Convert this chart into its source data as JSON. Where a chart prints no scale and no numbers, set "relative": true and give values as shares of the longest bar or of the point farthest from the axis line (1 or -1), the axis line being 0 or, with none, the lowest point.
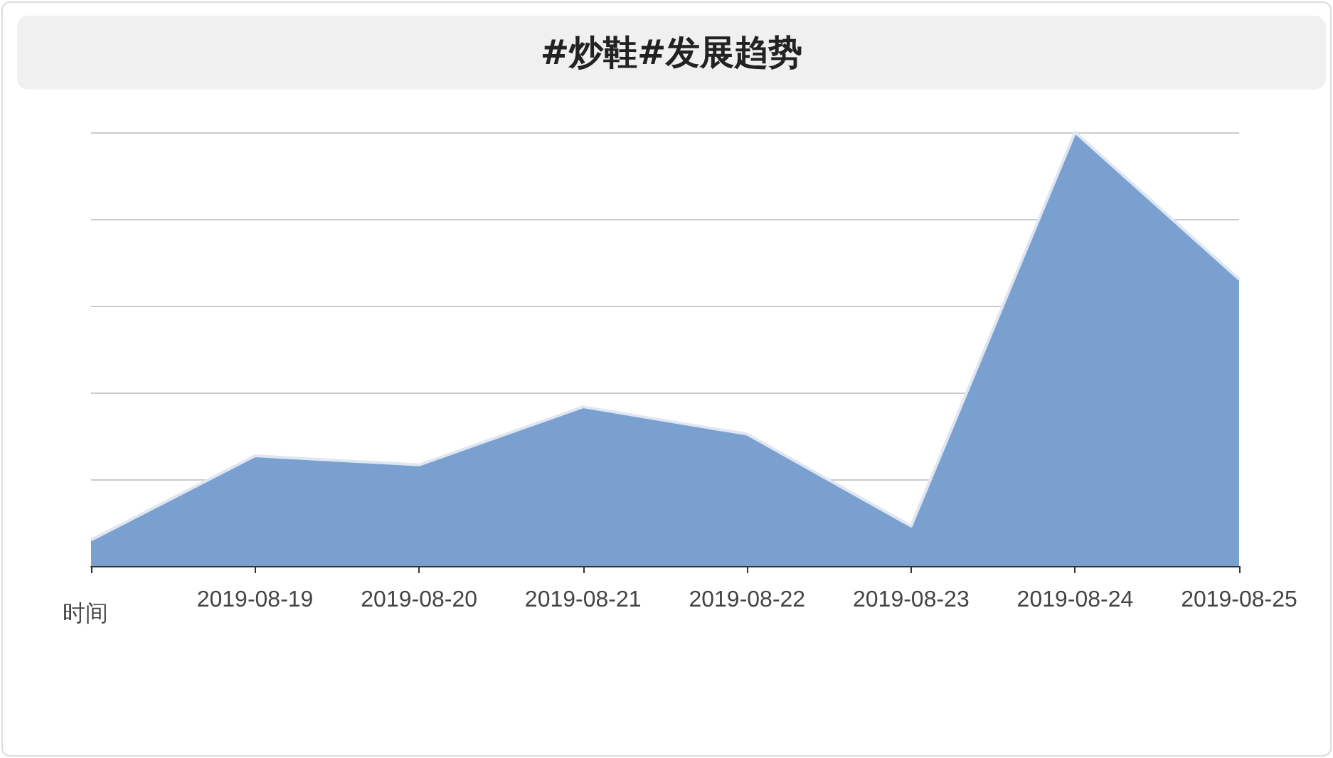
{
  "chart_data": {
    "type": "area",
    "title": "#炒鞋#发展趋势",
    "xlabel": "时间",
    "relative": true,
    "grid": "y",
    "marker": "none",
    "categories": [
      null,
      "2019-08-19",
      "2019-08-20",
      "2019-08-21",
      "2019-08-22",
      "2019-08-23",
      "2019-08-24",
      "2019-08-25"
    ],
    "series": [
      {
        "color": "#7aa0cf",
        "values": [
          0.06,
          0.254,
          0.233,
          0.367,
          0.304,
          0.092,
          1,
          0.661
        ]
      }
    ]
  }
}
